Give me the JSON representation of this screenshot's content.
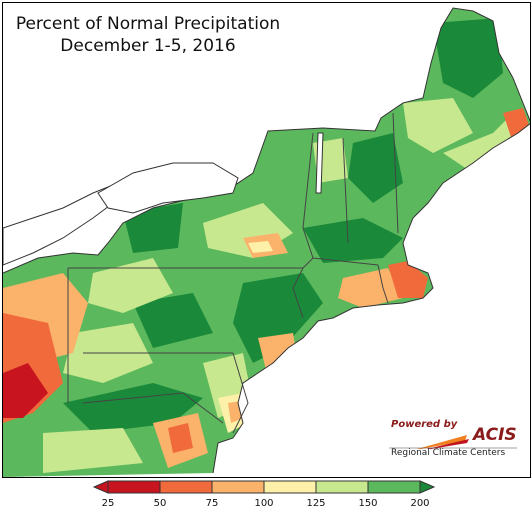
{
  "title": {
    "line1": "Percent of Normal Precipitation",
    "line2": "December 1-5, 2016"
  },
  "logo": {
    "powered_by": "Powered by",
    "name": "ACIS",
    "subtitle": "Regional Climate Centers"
  },
  "legend": {
    "breaks": [
      "25",
      "50",
      "75",
      "100",
      "125",
      "150",
      "200"
    ],
    "colors": [
      "#c8141e",
      "#f06a3c",
      "#fbb26a",
      "#fdf0a8",
      "#c8e890",
      "#5cb85c",
      "#1a8a3a"
    ]
  },
  "colors": {
    "water": "#ffffff",
    "outside": "#ffffff",
    "border": "#555555"
  }
}
